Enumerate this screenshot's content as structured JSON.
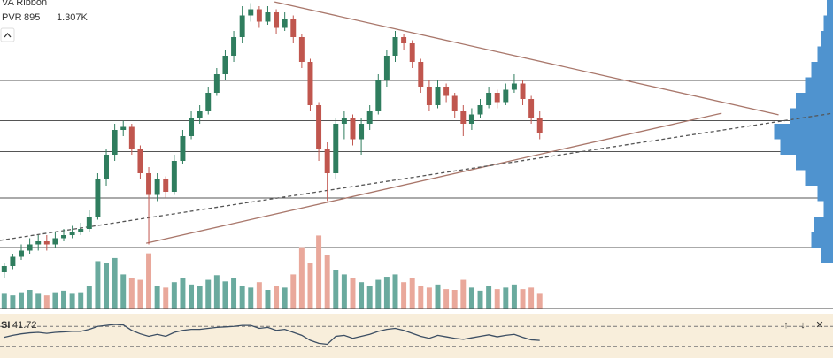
{
  "chart_data": {
    "type": "candlestick",
    "indicator_name": "VA Ribbon",
    "volume_label": "PVR",
    "volume_value": "895",
    "volume_total": "1.307K",
    "rsi_label": "SI",
    "rsi_value": "41.72",
    "toolbar": [
      "↑",
      "↓",
      "✕"
    ],
    "xlim": [
      -0.5,
      97.5
    ],
    "ylim": [
      0,
      100
    ],
    "open": [
      12,
      14,
      17,
      19,
      21,
      22,
      21,
      23,
      24,
      25,
      26,
      30,
      42,
      50,
      58,
      59,
      52,
      44,
      37,
      42,
      38,
      48,
      56,
      62,
      64,
      70,
      76,
      82,
      88,
      95,
      97,
      93,
      96,
      91,
      94,
      88,
      80,
      66,
      52,
      44,
      60,
      62,
      55,
      60,
      64,
      74,
      82,
      88,
      86,
      80,
      72,
      66,
      72,
      69,
      64,
      60,
      63,
      66,
      70,
      67,
      71,
      73,
      68,
      62
    ],
    "high": [
      15,
      18,
      21,
      23,
      24,
      24,
      25,
      26,
      27,
      28,
      32,
      44,
      52,
      60,
      61,
      60,
      53,
      46,
      44,
      43,
      50,
      58,
      64,
      66,
      72,
      78,
      84,
      90,
      98,
      99,
      98,
      98,
      97,
      96,
      95,
      89,
      81,
      67,
      54,
      62,
      64,
      63,
      62,
      66,
      76,
      84,
      90,
      89,
      87,
      81,
      74,
      74,
      73,
      70,
      66,
      65,
      68,
      72,
      71,
      73,
      76,
      74,
      69,
      64
    ],
    "low": [
      10,
      13,
      16,
      18,
      19,
      19,
      20,
      22,
      23,
      24,
      25,
      29,
      40,
      48,
      56,
      50,
      42,
      21,
      35,
      36,
      37,
      47,
      55,
      60,
      63,
      69,
      74,
      80,
      86,
      93,
      91,
      92,
      89,
      90,
      86,
      78,
      64,
      48,
      35,
      42,
      55,
      53,
      50,
      58,
      63,
      72,
      80,
      84,
      78,
      70,
      64,
      65,
      67,
      62,
      56,
      58,
      62,
      65,
      65,
      66,
      70,
      66,
      60,
      55
    ],
    "close": [
      14,
      17,
      19,
      21,
      22,
      21,
      23,
      24,
      25,
      26,
      30,
      42,
      50,
      58,
      59,
      52,
      44,
      37,
      42,
      38,
      48,
      56,
      62,
      64,
      70,
      76,
      82,
      88,
      95,
      97,
      93,
      96,
      91,
      94,
      88,
      80,
      66,
      52,
      44,
      60,
      62,
      55,
      60,
      64,
      74,
      82,
      88,
      86,
      80,
      72,
      66,
      72,
      69,
      64,
      60,
      63,
      66,
      70,
      67,
      71,
      73,
      68,
      62,
      57
    ],
    "up_color": "#2f7d5e",
    "down_color": "#c0564e",
    "volume": [
      20,
      18,
      22,
      25,
      20,
      18,
      22,
      24,
      20,
      22,
      30,
      62,
      60,
      66,
      45,
      40,
      38,
      72,
      30,
      28,
      35,
      40,
      32,
      30,
      38,
      44,
      36,
      40,
      30,
      28,
      35,
      25,
      30,
      28,
      45,
      80,
      60,
      95,
      70,
      50,
      45,
      40,
      35,
      30,
      38,
      42,
      45,
      35,
      40,
      30,
      28,
      32,
      26,
      25,
      38,
      28,
      24,
      30,
      26,
      28,
      32,
      26,
      28,
      20
    ],
    "volume_lim": [
      0,
      100
    ],
    "volume_up_color": "#6aaa9e",
    "volume_down_color": "#e9a89b",
    "rsi": [
      48,
      52,
      55,
      57,
      58,
      56,
      58,
      59,
      60,
      60,
      64,
      70,
      72,
      74,
      73,
      62,
      55,
      50,
      54,
      50,
      58,
      62,
      64,
      64,
      66,
      68,
      69,
      70,
      72,
      72,
      66,
      68,
      62,
      64,
      58,
      52,
      42,
      36,
      34,
      50,
      52,
      46,
      50,
      54,
      60,
      64,
      66,
      62,
      56,
      50,
      46,
      52,
      49,
      46,
      44,
      47,
      50,
      53,
      49,
      52,
      54,
      48,
      43,
      41.72
    ],
    "rsi_lim": [
      10,
      90
    ],
    "rsi_levels": [
      70,
      30
    ],
    "rsi_color": "#3c4e63",
    "levels": [
      74,
      61,
      51,
      36,
      20
    ],
    "level_color": "#555555",
    "trendlines": [
      {
        "x": [
          31.8,
          91.1
        ],
        "y": [
          99.4,
          62.9
        ],
        "color": "#a9776b",
        "dashed": false
      },
      {
        "x": [
          16.7,
          84.4
        ],
        "y": [
          21.4,
          63.4
        ],
        "color": "#a9776b",
        "dashed": false
      },
      {
        "x": [
          -0.5,
          97.5
        ],
        "y": [
          22.3,
          63.4
        ],
        "color": "#555555",
        "dashed": true
      }
    ],
    "profile": {
      "bins": [
        15,
        20,
        25,
        30,
        35,
        40,
        45,
        50,
        55,
        60,
        65,
        70,
        75,
        80,
        85,
        90,
        95,
        100
      ],
      "values": [
        20,
        35,
        30,
        15,
        25,
        45,
        60,
        85,
        95,
        70,
        60,
        45,
        35,
        25,
        20,
        15,
        10
      ],
      "xlim": [
        0,
        100
      ],
      "color": "#4f93cf"
    }
  }
}
